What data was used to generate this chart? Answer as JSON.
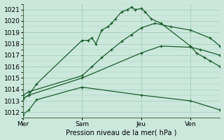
{
  "bg_color": "#cce8dd",
  "grid_color": "#aad4c4",
  "line_color": "#1a5c2a",
  "xlabel": "Pression niveau de la mer( hPa )",
  "ylim": [
    1011.5,
    1021.5
  ],
  "xlim": [
    0,
    10
  ],
  "day_positions": [
    0.0,
    3.0,
    6.0,
    8.5
  ],
  "day_labels": [
    "Mer",
    "Sam",
    "Jeu",
    "Ven"
  ],
  "lines": [
    {
      "x": [
        0.0,
        0.3,
        0.7,
        3.0,
        6.0,
        8.5,
        10.0
      ],
      "y": [
        1011.8,
        1012.2,
        1013.1,
        1014.2,
        1013.5,
        1013.0,
        1012.2
      ]
    },
    {
      "x": [
        0.0,
        0.3,
        3.0,
        6.0,
        7.0,
        8.5,
        9.0,
        10.0
      ],
      "y": [
        1013.2,
        1013.5,
        1015.0,
        1017.2,
        1017.8,
        1017.7,
        1017.5,
        1017.0
      ]
    },
    {
      "x": [
        0.0,
        0.3,
        3.0,
        3.5,
        4.0,
        4.5,
        5.0,
        5.5,
        6.0,
        6.7,
        7.5,
        8.5,
        9.5,
        10.0
      ],
      "y": [
        1013.5,
        1013.8,
        1015.2,
        1016.0,
        1016.8,
        1017.5,
        1018.2,
        1018.8,
        1019.4,
        1019.8,
        1019.5,
        1019.2,
        1018.5,
        1017.8
      ]
    },
    {
      "x": [
        0.0,
        0.3,
        0.7,
        3.0,
        3.3,
        3.5,
        3.7,
        4.0,
        4.3,
        4.5,
        4.7,
        5.0,
        5.3,
        5.5,
        5.7,
        6.0,
        6.2,
        6.5,
        7.0,
        8.5,
        8.8,
        9.2,
        9.5,
        10.0
      ],
      "y": [
        1013.2,
        1013.5,
        1014.5,
        1018.3,
        1018.3,
        1018.5,
        1018.0,
        1019.2,
        1019.5,
        1019.8,
        1020.2,
        1020.8,
        1021.0,
        1021.2,
        1021.0,
        1021.1,
        1020.8,
        1020.2,
        1019.8,
        1017.8,
        1017.2,
        1016.8,
        1016.5,
        1016.0
      ]
    }
  ]
}
